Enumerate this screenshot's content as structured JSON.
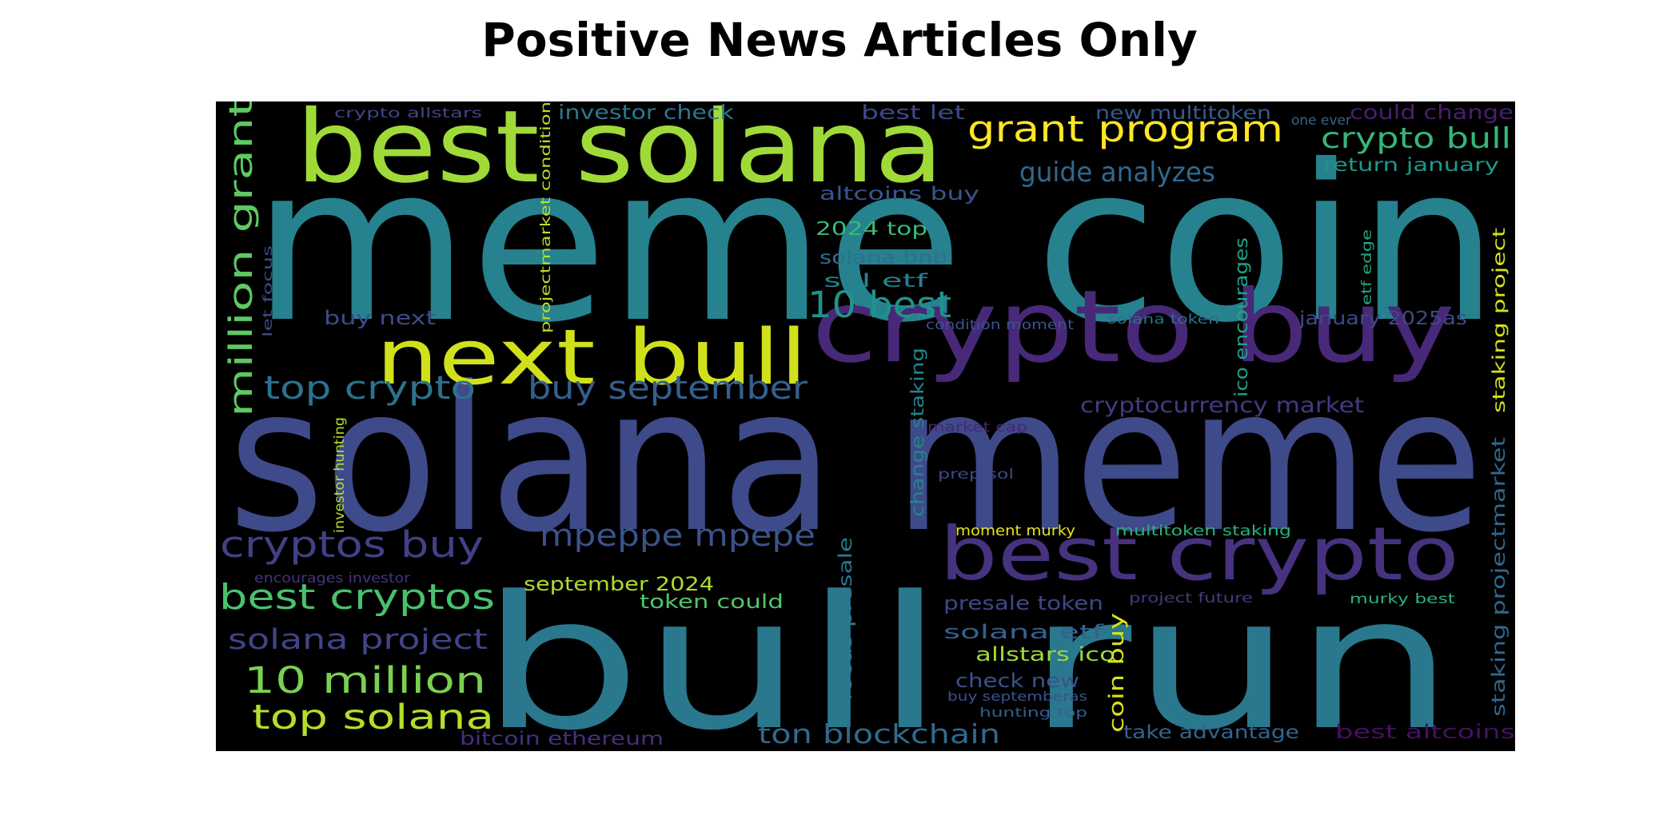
{
  "title": "Positive News Articles Only",
  "words": [
    {
      "text": "meme coin",
      "color": "#26828e"
    },
    {
      "text": "solana meme",
      "color": "#3e4a89"
    },
    {
      "text": "bull run",
      "color": "#2a788e"
    },
    {
      "text": "best solana",
      "color": "#a0da39"
    },
    {
      "text": "crypto buy",
      "color": "#482878"
    },
    {
      "text": "next bull",
      "color": "#d0e11c"
    },
    {
      "text": "best crypto",
      "color": "#46327e"
    },
    {
      "text": "grant program",
      "color": "#fde725"
    },
    {
      "text": "million grant",
      "color": "#5ec962"
    },
    {
      "text": "crypto bull",
      "color": "#35b779"
    },
    {
      "text": "guide analyzes",
      "color": "#31688e"
    },
    {
      "text": "top crypto",
      "color": "#2c728e"
    },
    {
      "text": "buy september",
      "color": "#355f8d"
    },
    {
      "text": "cryptos buy",
      "color": "#424086"
    },
    {
      "text": "mpeppe mpepe",
      "color": "#3b528b"
    },
    {
      "text": "best cryptos",
      "color": "#4ac16d"
    },
    {
      "text": "10 best",
      "color": "#21918c"
    },
    {
      "text": "10 million",
      "color": "#7ad151"
    },
    {
      "text": "top solana",
      "color": "#b5de2b"
    },
    {
      "text": "solana project",
      "color": "#414487"
    },
    {
      "text": "ton blockchain",
      "color": "#30698e"
    },
    {
      "text": "cryptocurrency market",
      "color": "#443983"
    },
    {
      "text": "investor check",
      "color": "#2a788e"
    },
    {
      "text": "best let",
      "color": "#3e4989"
    },
    {
      "text": "new multitoken",
      "color": "#38598c"
    },
    {
      "text": "could change",
      "color": "#481f70"
    },
    {
      "text": "return january",
      "color": "#1f978b"
    },
    {
      "text": "altcoins buy",
      "color": "#39568c"
    },
    {
      "text": "2024 top",
      "color": "#3aba76"
    },
    {
      "text": "solana bnb",
      "color": "#2d708e"
    },
    {
      "text": "sol etf",
      "color": "#27808e"
    },
    {
      "text": "buy next",
      "color": "#3e4c8a"
    },
    {
      "text": "september 2024",
      "color": "#addc30"
    },
    {
      "text": "token could",
      "color": "#52c569"
    },
    {
      "text": "presale token",
      "color": "#3f4788"
    },
    {
      "text": "solana etf",
      "color": "#34618d"
    },
    {
      "text": "allstars ico",
      "color": "#9bd93c"
    },
    {
      "text": "check new",
      "color": "#3b528b"
    },
    {
      "text": "bitcoin ethereum",
      "color": "#472f7d"
    },
    {
      "text": "take advantage",
      "color": "#32658e"
    },
    {
      "text": "best altcoins",
      "color": "#471063"
    },
    {
      "text": "crypto allstars",
      "color": "#414487"
    },
    {
      "text": "one ever",
      "color": "#31688e"
    },
    {
      "text": "condition moment",
      "color": "#3b528b"
    },
    {
      "text": "solana token",
      "color": "#2f6c8e"
    },
    {
      "text": "january 2025as",
      "color": "#3e4989"
    },
    {
      "text": "market cap",
      "color": "#482576"
    },
    {
      "text": "prep sol",
      "color": "#3f4889"
    },
    {
      "text": "moment murky",
      "color": "#e5e419"
    },
    {
      "text": "multitoken staking",
      "color": "#2ab07f"
    },
    {
      "text": "project future",
      "color": "#453882"
    },
    {
      "text": "murky best",
      "color": "#2db27d"
    },
    {
      "text": "buy septemberas",
      "color": "#3b528b"
    },
    {
      "text": "hunting top",
      "color": "#35608d"
    },
    {
      "text": "encourages investor",
      "color": "#46337f"
    },
    {
      "text": "projectmarket condition",
      "color": "#bade28"
    },
    {
      "text": "change staking",
      "color": "#25848e"
    },
    {
      "text": "ico encourages",
      "color": "#1fa287"
    },
    {
      "text": "staking project",
      "color": "#d2e21b"
    },
    {
      "text": "staking projectmarket",
      "color": "#31688e"
    },
    {
      "text": "investor hunting",
      "color": "#b8de29"
    },
    {
      "text": "focus presale",
      "color": "#2a768e"
    },
    {
      "text": "coin buy",
      "color": "#d8e219"
    },
    {
      "text": "etf edge",
      "color": "#22a884"
    },
    {
      "text": "let focus",
      "color": "#3e4a89"
    }
  ]
}
